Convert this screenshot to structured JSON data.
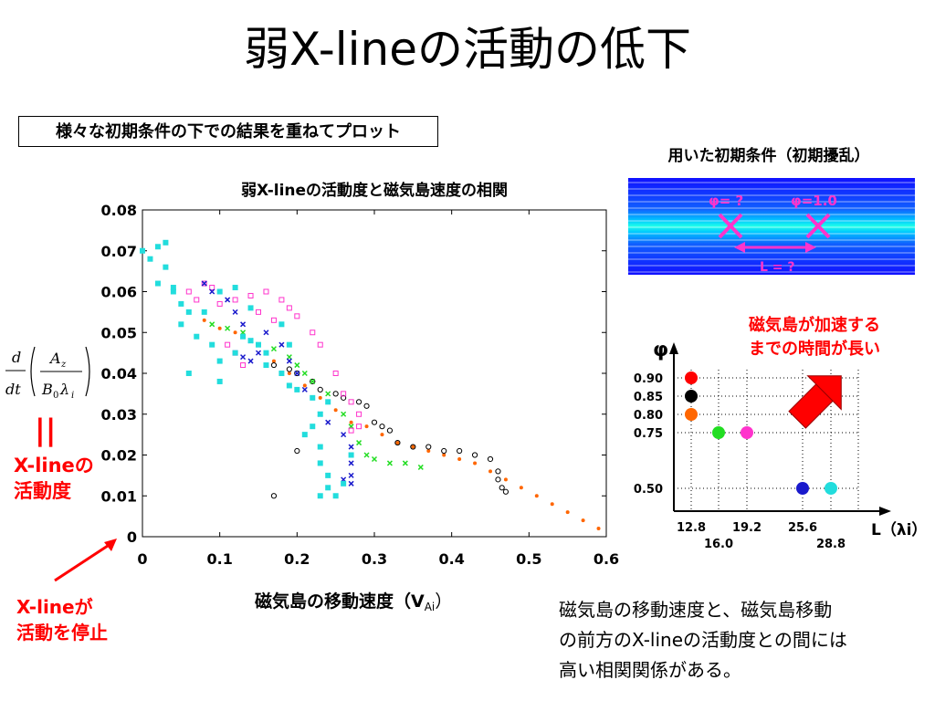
{
  "slide": {
    "title": "弱X-lineの活動の低下",
    "boxed_note": "様々な初期条件の下での結果を重ねてプロット",
    "chart_title": "弱X-lineの活動度と磁気島速度の相関",
    "xaxis_label": "磁気島の移動速度（V",
    "xaxis_sub": "Ai",
    "xaxis_close": "）",
    "eq_mark": "||",
    "activity_label": [
      "X-lineの",
      "活動度"
    ],
    "stop_label": [
      "X-lineが",
      "活動を停止"
    ],
    "bottom_note": [
      "磁気島の移動速度と、磁気島移動",
      "の前方のX-lineの活動度との間には",
      "高い相関関係がある。"
    ],
    "conditions_title": "用いた初期条件（初期擾乱）",
    "phi_q": "φ= ?",
    "phi_one": "φ=1.0",
    "l_q": "L = ?",
    "accel_label": [
      "磁気島が加速する",
      "までの時間が長い"
    ],
    "formula": {
      "d": "d",
      "dt": "dt",
      "A": "A",
      "Az": "z",
      "B": "B",
      "B0": "0",
      "lam": "λ",
      "lami": "i"
    }
  },
  "colors": {
    "orange": "#ff6600",
    "black": "#000000",
    "green": "#22dd22",
    "magenta": "#ff33cc",
    "blue": "#1a1acc",
    "cyan": "#22dddd",
    "red": "#ff0000"
  },
  "chart_data": [
    {
      "type": "scatter",
      "title": "弱X-lineの活動度と磁気島速度の相関",
      "xlabel": "磁気島の移動速度（VAi）",
      "ylabel": "",
      "xlim": [
        0,
        0.6
      ],
      "ylim": [
        0,
        0.08
      ],
      "xticks": [
        "0",
        "0.1",
        "0.2",
        "0.3",
        "0.4",
        "0.5",
        "0.6"
      ],
      "yticks": [
        "0",
        "0.01",
        "0.02",
        "0.03",
        "0.04",
        "0.05",
        "0.06",
        "0.07",
        "0.08"
      ],
      "grid": false,
      "series": [
        {
          "color": "orange",
          "marker": "dot",
          "points": [
            [
              0.08,
              0.053
            ],
            [
              0.1,
              0.051
            ],
            [
              0.12,
              0.05
            ],
            [
              0.14,
              0.048
            ],
            [
              0.16,
              0.045
            ],
            [
              0.17,
              0.043
            ],
            [
              0.19,
              0.04
            ],
            [
              0.21,
              0.037
            ],
            [
              0.23,
              0.034
            ],
            [
              0.25,
              0.031
            ],
            [
              0.27,
              0.028
            ],
            [
              0.29,
              0.027
            ],
            [
              0.31,
              0.025
            ],
            [
              0.33,
              0.023
            ],
            [
              0.35,
              0.022
            ],
            [
              0.37,
              0.021
            ],
            [
              0.39,
              0.02
            ],
            [
              0.41,
              0.019
            ],
            [
              0.43,
              0.018
            ],
            [
              0.45,
              0.016
            ],
            [
              0.47,
              0.014
            ],
            [
              0.49,
              0.012
            ],
            [
              0.51,
              0.01
            ],
            [
              0.53,
              0.008
            ],
            [
              0.55,
              0.006
            ],
            [
              0.57,
              0.004
            ],
            [
              0.59,
              0.002
            ]
          ]
        },
        {
          "color": "black",
          "marker": "circle",
          "points": [
            [
              0.17,
              0.042
            ],
            [
              0.19,
              0.041
            ],
            [
              0.2,
              0.04
            ],
            [
              0.22,
              0.038
            ],
            [
              0.23,
              0.036
            ],
            [
              0.25,
              0.035
            ],
            [
              0.26,
              0.034
            ],
            [
              0.28,
              0.033
            ],
            [
              0.29,
              0.032
            ],
            [
              0.3,
              0.028
            ],
            [
              0.31,
              0.027
            ],
            [
              0.32,
              0.026
            ],
            [
              0.33,
              0.023
            ],
            [
              0.35,
              0.022
            ],
            [
              0.37,
              0.022
            ],
            [
              0.39,
              0.021
            ],
            [
              0.41,
              0.021
            ],
            [
              0.43,
              0.02
            ],
            [
              0.45,
              0.019
            ],
            [
              0.46,
              0.016
            ],
            [
              0.46,
              0.014
            ],
            [
              0.465,
              0.012
            ],
            [
              0.47,
              0.011
            ],
            [
              0.17,
              0.01
            ],
            [
              0.2,
              0.021
            ]
          ]
        },
        {
          "color": "green",
          "marker": "x",
          "points": [
            [
              0.09,
              0.052
            ],
            [
              0.11,
              0.051
            ],
            [
              0.13,
              0.05
            ],
            [
              0.15,
              0.047
            ],
            [
              0.17,
              0.046
            ],
            [
              0.19,
              0.044
            ],
            [
              0.2,
              0.042
            ],
            [
              0.21,
              0.04
            ],
            [
              0.22,
              0.038
            ],
            [
              0.24,
              0.035
            ],
            [
              0.26,
              0.03
            ],
            [
              0.27,
              0.027
            ],
            [
              0.28,
              0.023
            ],
            [
              0.29,
              0.02
            ],
            [
              0.3,
              0.019
            ],
            [
              0.32,
              0.018
            ],
            [
              0.34,
              0.018
            ],
            [
              0.36,
              0.017
            ]
          ]
        },
        {
          "color": "magenta",
          "marker": "square",
          "points": [
            [
              0.06,
              0.06
            ],
            [
              0.07,
              0.058
            ],
            [
              0.08,
              0.062
            ],
            [
              0.09,
              0.061
            ],
            [
              0.1,
              0.057
            ],
            [
              0.12,
              0.058
            ],
            [
              0.14,
              0.059
            ],
            [
              0.16,
              0.06
            ],
            [
              0.18,
              0.058
            ],
            [
              0.15,
              0.055
            ],
            [
              0.17,
              0.053
            ],
            [
              0.19,
              0.056
            ],
            [
              0.2,
              0.054
            ],
            [
              0.22,
              0.05
            ],
            [
              0.23,
              0.047
            ],
            [
              0.25,
              0.04
            ],
            [
              0.26,
              0.035
            ],
            [
              0.27,
              0.033
            ],
            [
              0.28,
              0.03
            ],
            [
              0.28,
              0.027
            ],
            [
              0.27,
              0.026
            ],
            [
              0.13,
              0.042
            ],
            [
              0.12,
              0.045
            ],
            [
              0.11,
              0.047
            ]
          ]
        },
        {
          "color": "blue",
          "marker": "x",
          "points": [
            [
              0.08,
              0.062
            ],
            [
              0.09,
              0.06
            ],
            [
              0.11,
              0.058
            ],
            [
              0.12,
              0.055
            ],
            [
              0.13,
              0.052
            ],
            [
              0.14,
              0.048
            ],
            [
              0.13,
              0.044
            ],
            [
              0.14,
              0.043
            ],
            [
              0.15,
              0.045
            ],
            [
              0.16,
              0.05
            ],
            [
              0.18,
              0.047
            ],
            [
              0.19,
              0.043
            ],
            [
              0.2,
              0.04
            ],
            [
              0.21,
              0.036
            ],
            [
              0.23,
              0.03
            ],
            [
              0.24,
              0.028
            ],
            [
              0.26,
              0.025
            ],
            [
              0.27,
              0.022
            ],
            [
              0.27,
              0.018
            ],
            [
              0.27,
              0.015
            ],
            [
              0.27,
              0.013
            ],
            [
              0.26,
              0.014
            ]
          ]
        },
        {
          "color": "cyan",
          "marker": "square",
          "points": [
            [
              0.0,
              0.07
            ],
            [
              0.01,
              0.068
            ],
            [
              0.02,
              0.071
            ],
            [
              0.03,
              0.072
            ],
            [
              0.03,
              0.066
            ],
            [
              0.02,
              0.062
            ],
            [
              0.04,
              0.06
            ],
            [
              0.05,
              0.057
            ],
            [
              0.06,
              0.055
            ],
            [
              0.05,
              0.052
            ],
            [
              0.07,
              0.049
            ],
            [
              0.09,
              0.047
            ],
            [
              0.1,
              0.043
            ],
            [
              0.1,
              0.038
            ],
            [
              0.12,
              0.045
            ],
            [
              0.13,
              0.049
            ],
            [
              0.14,
              0.048
            ],
            [
              0.15,
              0.047
            ],
            [
              0.16,
              0.045
            ],
            [
              0.16,
              0.042
            ],
            [
              0.18,
              0.04
            ],
            [
              0.19,
              0.037
            ],
            [
              0.2,
              0.036
            ],
            [
              0.22,
              0.034
            ],
            [
              0.24,
              0.033
            ],
            [
              0.23,
              0.03
            ],
            [
              0.22,
              0.027
            ],
            [
              0.21,
              0.025
            ],
            [
              0.23,
              0.022
            ],
            [
              0.23,
              0.018
            ],
            [
              0.24,
              0.015
            ],
            [
              0.24,
              0.012
            ],
            [
              0.25,
              0.01
            ],
            [
              0.23,
              0.01
            ],
            [
              0.26,
              0.013
            ],
            [
              0.27,
              0.02
            ],
            [
              0.14,
              0.056
            ],
            [
              0.12,
              0.061
            ],
            [
              0.1,
              0.06
            ],
            [
              0.18,
              0.052
            ],
            [
              0.19,
              0.047
            ],
            [
              0.06,
              0.04
            ],
            [
              0.04,
              0.061
            ],
            [
              0.08,
              0.055
            ]
          ]
        }
      ]
    },
    {
      "type": "scatter",
      "title": "",
      "xlabel": "L（λi）",
      "ylabel": "φ",
      "xticks": [
        "12.8",
        "16.0",
        "19.2",
        "25.6",
        "28.8"
      ],
      "yticks": [
        "0.90",
        "0.85",
        "0.80",
        "0.75",
        "0.50"
      ],
      "grid": true,
      "points": [
        {
          "L": 12.8,
          "phi": 0.9,
          "color": "red"
        },
        {
          "L": 12.8,
          "phi": 0.85,
          "color": "black"
        },
        {
          "L": 12.8,
          "phi": 0.8,
          "color": "orange"
        },
        {
          "L": 16.0,
          "phi": 0.75,
          "color": "green"
        },
        {
          "L": 19.2,
          "phi": 0.75,
          "color": "magenta"
        },
        {
          "L": 25.6,
          "phi": 0.5,
          "color": "blue"
        },
        {
          "L": 28.8,
          "phi": 0.5,
          "color": "cyan"
        }
      ]
    }
  ]
}
